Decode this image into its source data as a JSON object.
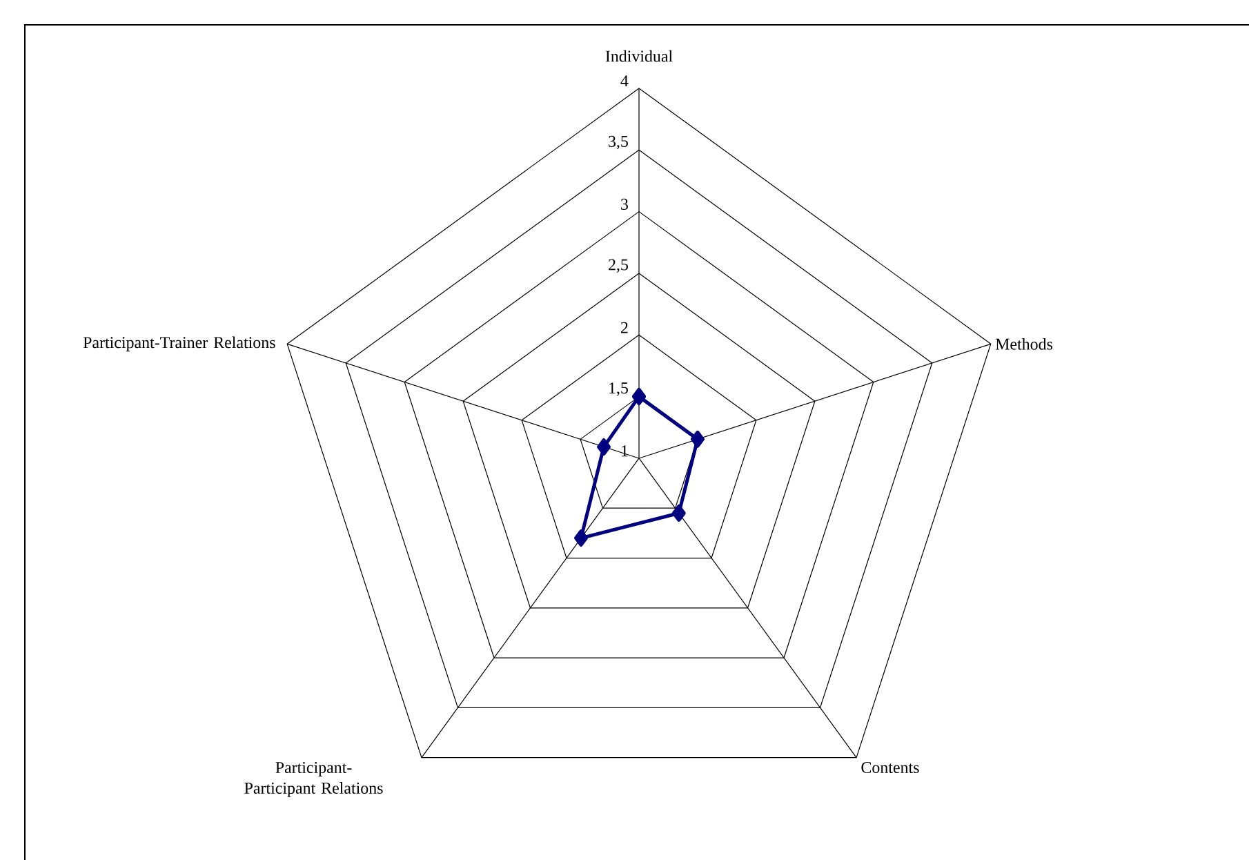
{
  "chart_data": {
    "type": "radar",
    "categories": [
      "Individual",
      "Methods",
      "Contents",
      "Participant-Participant Relations",
      "Participant-Trainer Relations"
    ],
    "series": [
      {
        "color": "#000080",
        "values": [
          1.5,
          1.5,
          1.55,
          1.8,
          1.3
        ]
      }
    ],
    "ylim": [
      1,
      4
    ],
    "yticks": [
      1,
      {
        "value": 1.5,
        "label": "1,5"
      },
      2,
      {
        "value": 2.5,
        "label": "2,5"
      },
      3,
      {
        "value": 3.5,
        "label": "3,5"
      },
      4
    ],
    "grid": true,
    "marker": "diamond",
    "line_style": "solid"
  }
}
